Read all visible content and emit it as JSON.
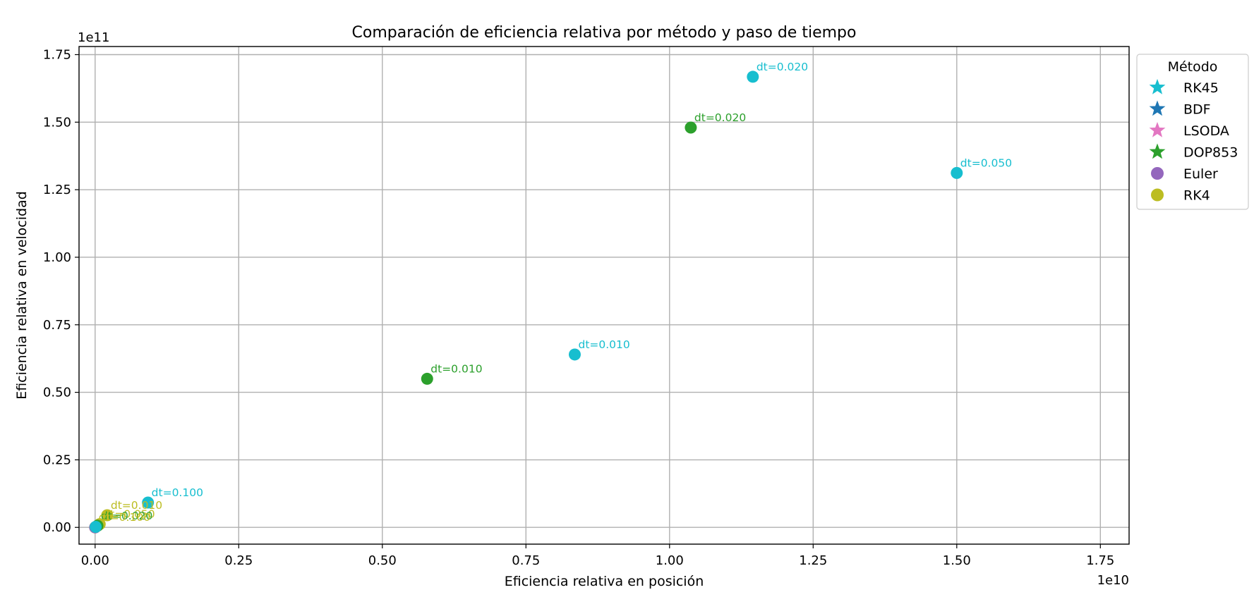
{
  "chart_data": {
    "type": "scatter",
    "title": "Comparación de eficiencia relativa por método y paso de tiempo",
    "xlabel": "Eficiencia relativa en posición",
    "ylabel": "Eficiencia relativa en velocidad",
    "x_offset_text": "1e10",
    "y_offset_text": "1e11",
    "xlim": [
      -0.028,
      1.8
    ],
    "ylim": [
      -0.062,
      1.78
    ],
    "xticks": [
      0.0,
      0.25,
      0.5,
      0.75,
      1.0,
      1.25,
      1.5,
      1.75
    ],
    "xtick_labels": [
      "0.00",
      "0.25",
      "0.50",
      "0.75",
      "1.00",
      "1.25",
      "1.50",
      "1.75"
    ],
    "yticks": [
      0.0,
      0.25,
      0.5,
      0.75,
      1.0,
      1.25,
      1.5,
      1.75
    ],
    "ytick_labels": [
      "0.00",
      "0.25",
      "0.50",
      "0.75",
      "1.00",
      "1.25",
      "1.50",
      "1.75"
    ],
    "grid": true,
    "legend": {
      "title": "Método",
      "placement": "outside right, top",
      "entries": [
        {
          "name": "RK45",
          "marker": "star",
          "color": "#17becf"
        },
        {
          "name": "BDF",
          "marker": "star",
          "color": "#1f77b4"
        },
        {
          "name": "LSODA",
          "marker": "star",
          "color": "#e377c2"
        },
        {
          "name": "DOP853",
          "marker": "star",
          "color": "#2ca02c"
        },
        {
          "name": "Euler",
          "marker": "circle",
          "color": "#9467bd"
        },
        {
          "name": "RK4",
          "marker": "circle",
          "color": "#bcbd22"
        }
      ]
    },
    "points": [
      {
        "x": 1.145,
        "y": 1.668,
        "label": "dt=0.020",
        "color": "#17becf"
      },
      {
        "x": 1.5,
        "y": 1.312,
        "label": "dt=0.050",
        "color": "#17becf"
      },
      {
        "x": 0.835,
        "y": 0.64,
        "label": "dt=0.010",
        "color": "#17becf"
      },
      {
        "x": 0.092,
        "y": 0.092,
        "label": "dt=0.100",
        "color": "#17becf"
      },
      {
        "x": 1.037,
        "y": 1.48,
        "label": "dt=0.020",
        "color": "#2ca02c"
      },
      {
        "x": 0.578,
        "y": 0.55,
        "label": "dt=0.010",
        "color": "#2ca02c"
      },
      {
        "x": 0.021,
        "y": 0.045,
        "label": "dt=0.010",
        "color": "#bcbd22"
      },
      {
        "x": 0.008,
        "y": 0.012,
        "label": "dt=0.050",
        "color": "#bcbd22"
      },
      {
        "x": 0.004,
        "y": 0.006,
        "label": "dt=0.020",
        "color": "#2ca02c"
      },
      {
        "x": 0.0,
        "y": 0.0,
        "label": "dt=0.100",
        "color": "#bcbd22"
      },
      {
        "x": 0.0,
        "y": 0.0,
        "label": "",
        "color": "#9467bd"
      },
      {
        "x": 0.001,
        "y": 0.002,
        "label": "",
        "color": "#17becf"
      }
    ]
  }
}
